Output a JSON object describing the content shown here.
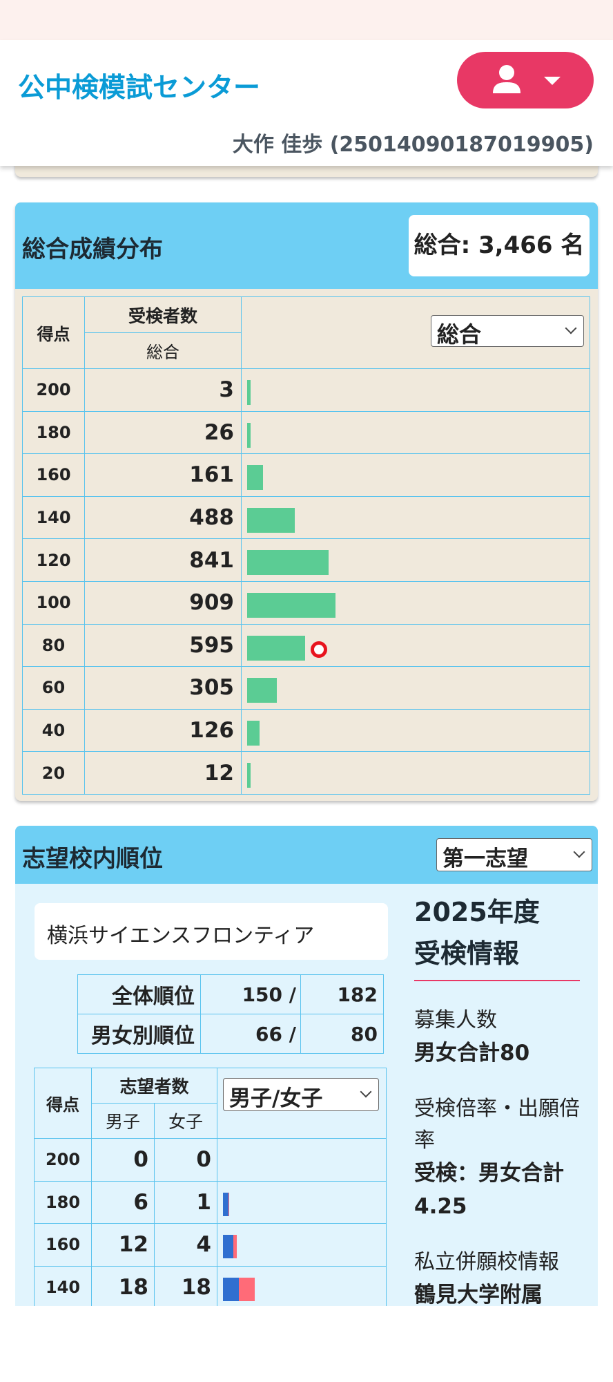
{
  "header": {
    "brand": "公中検模試センター",
    "user_line": "大作 佳歩 (25014090187019905)"
  },
  "distribution": {
    "title": "総合成績分布",
    "total": "総合: 3,466 名",
    "col_score": "得点",
    "col_count": "受検者数",
    "col_sub": "総合",
    "select_value": "総合",
    "rows": [
      {
        "score": "200",
        "count": "3"
      },
      {
        "score": "180",
        "count": "26"
      },
      {
        "score": "160",
        "count": "161"
      },
      {
        "score": "140",
        "count": "488"
      },
      {
        "score": "120",
        "count": "841"
      },
      {
        "score": "100",
        "count": "909"
      },
      {
        "score": "80",
        "count": "595"
      },
      {
        "score": "60",
        "count": "305"
      },
      {
        "score": "40",
        "count": "126"
      },
      {
        "score": "20",
        "count": "12"
      }
    ],
    "bar_colors": {
      "bar": "#5bcc94",
      "marker": "#e8141e"
    },
    "marker_score": "80"
  },
  "ranking": {
    "title": "志望校内順位",
    "select_value": "第一志望",
    "school": "横浜サイエンスフロンティア",
    "overall_label": "全体順位",
    "overall_rank": "150 /",
    "overall_total": "182",
    "gender_label": "男女別順位",
    "gender_rank": "66 /",
    "gender_total": "80",
    "col_score": "得点",
    "col_applicants": "志望者数",
    "col_male": "男子",
    "col_female": "女子",
    "gender_select": "男子/女子",
    "rows": [
      {
        "score": "200",
        "male": "0",
        "female": "0"
      },
      {
        "score": "180",
        "male": "6",
        "female": "1"
      },
      {
        "score": "160",
        "male": "12",
        "female": "4"
      },
      {
        "score": "140",
        "male": "18",
        "female": "18"
      }
    ],
    "colors": {
      "male": "#2f6fd0",
      "female": "#ff6b78"
    }
  },
  "info": {
    "title_line1": "2025年度",
    "title_line2": "受検情報",
    "recruit_label": "募集人数",
    "recruit_value": "男女合計80",
    "ratio_label": "受検倍率・出願倍率",
    "ratio_value": "受検：男女合計 4.25",
    "private_label": "私立併願校情報",
    "private_value": "鶴見大学附属"
  }
}
